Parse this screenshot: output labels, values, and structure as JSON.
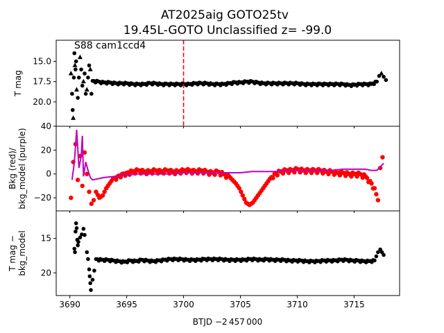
{
  "figure": {
    "title_line1": "AT2025aig  GOTO25tv",
    "title_line2": "19.45L-GOTO Unclassified z= -99.0",
    "annotation": "S88 cam1ccd4",
    "xlabel": "BTJD −2 457 000",
    "marker_color": "#ff0000",
    "model_color": "#bf00bf",
    "point_color": "#000000"
  },
  "chart_data": [
    {
      "type": "scatter",
      "panel": "top",
      "ylabel": "T mag",
      "ylim": [
        23.0,
        12.4
      ],
      "y_inverted": true,
      "yticks": [
        15.0,
        17.5,
        20.0
      ],
      "ytick_labels": [
        "15.0",
        "17.5",
        "20.0"
      ],
      "vline_x": 3700.0,
      "vline_color": "#ff0000",
      "series": [
        {
          "marker": "triangle+circle",
          "color": "#000000",
          "x": [
            3690.1,
            3690.2,
            3690.25,
            3690.3,
            3690.35,
            3690.4,
            3690.45,
            3690.5,
            3690.55,
            3690.6,
            3690.7,
            3690.8,
            3690.9,
            3691.0,
            3691.1,
            3691.2,
            3691.3,
            3691.4,
            3691.5,
            3691.6,
            3691.7,
            3691.8,
            3691.9,
            3692.0,
            3692.5,
            3693,
            3693.5,
            3694,
            3694.5,
            3695,
            3695.5,
            3696,
            3696.5,
            3697,
            3697.5,
            3698,
            3698.5,
            3699,
            3699.5,
            3700,
            3700.5,
            3701,
            3701.5,
            3702,
            3702.5,
            3703,
            3703.5,
            3704,
            3704.5,
            3705,
            3705.5,
            3706,
            3706.5,
            3707,
            3707.5,
            3708,
            3708.5,
            3709,
            3709.5,
            3710,
            3710.5,
            3711,
            3711.5,
            3712,
            3712.5,
            3713,
            3713.5,
            3714,
            3714.5,
            3715,
            3715.5,
            3716,
            3716.5,
            3717,
            3717.2,
            3717.4,
            3717.6,
            3717.8
          ],
          "y": [
            16.5,
            19.0,
            21.0,
            22.0,
            17.0,
            14.0,
            15.5,
            16.0,
            15.0,
            18.5,
            19.5,
            17.0,
            14.5,
            16.0,
            18.0,
            17.5,
            16.5,
            19.0,
            18.5,
            17.0,
            15.5,
            16.0,
            19.0,
            17.4,
            17.5,
            17.6,
            17.6,
            17.7,
            17.7,
            17.7,
            17.8,
            17.8,
            17.8,
            17.7,
            17.7,
            17.8,
            17.8,
            17.8,
            17.8,
            17.8,
            17.8,
            17.7,
            17.7,
            17.7,
            17.8,
            17.8,
            17.8,
            17.7,
            17.6,
            17.6,
            17.5,
            17.5,
            17.6,
            17.7,
            17.7,
            17.7,
            17.7,
            17.7,
            17.7,
            17.7,
            17.8,
            17.8,
            17.8,
            17.8,
            17.8,
            17.8,
            17.8,
            17.8,
            17.9,
            17.9,
            17.8,
            17.8,
            17.8,
            17.5,
            16.8,
            16.5,
            16.9,
            17.3
          ]
        }
      ]
    },
    {
      "type": "scatter",
      "panel": "middle",
      "ylabel": "Bkg (red)/\nbkg_model (purple)",
      "ylim": [
        -31,
        40
      ],
      "yticks": [
        -20,
        0,
        20,
        40
      ],
      "ytick_labels": [
        "−20",
        "0",
        "20",
        "40"
      ],
      "series": [
        {
          "name": "Bkg",
          "color": "#ff0000",
          "x": [
            3690.1,
            3690.3,
            3690.5,
            3690.7,
            3690.9,
            3691.1,
            3691.3,
            3691.5,
            3691.7,
            3691.9,
            3692.1,
            3692.3,
            3692.6,
            3692.9,
            3693.2,
            3693.5,
            3693.8,
            3694.2,
            3694.6,
            3695,
            3695.5,
            3696,
            3696.5,
            3697,
            3697.5,
            3698,
            3698.5,
            3699,
            3699.5,
            3700,
            3700.5,
            3701,
            3701.5,
            3702,
            3702.5,
            3703,
            3703.5,
            3704,
            3704.3,
            3704.6,
            3704.9,
            3705.2,
            3705.5,
            3705.8,
            3706.1,
            3706.4,
            3706.7,
            3707,
            3707.3,
            3707.6,
            3708,
            3708.5,
            3709,
            3709.5,
            3710,
            3710.5,
            3711,
            3711.5,
            3712,
            3712.5,
            3713,
            3713.5,
            3714,
            3714.5,
            3715,
            3715.5,
            3716,
            3716.4,
            3716.8,
            3717.1,
            3717.3,
            3717.5
          ],
          "y": [
            -20,
            10,
            25,
            -5,
            15,
            -10,
            18,
            0,
            -15,
            -25,
            -22,
            -15,
            -20,
            -18,
            -12,
            -8,
            -4,
            -2,
            0,
            1,
            2,
            3,
            2,
            2,
            3,
            2,
            3,
            2,
            2,
            3,
            3,
            2,
            3,
            2,
            1,
            2,
            0,
            -2,
            -5,
            -8,
            -12,
            -18,
            -24,
            -26,
            -24,
            -20,
            -16,
            -12,
            -8,
            -4,
            0,
            2,
            3,
            3,
            4,
            3,
            3,
            3,
            3,
            2,
            2,
            1,
            1,
            0,
            0,
            0,
            -2,
            -6,
            -12,
            -22,
            5,
            14
          ]
        },
        {
          "name": "bkg_model",
          "color": "#bf00bf",
          "x": [
            3690.2,
            3690.4,
            3690.6,
            3690.8,
            3691.0,
            3691.1,
            3691.2,
            3691.4,
            3691.6,
            3691.8,
            3692.0,
            3692.5,
            3693,
            3694,
            3695,
            3696,
            3697,
            3698,
            3699,
            3700,
            3701,
            3702,
            3703,
            3704,
            3705,
            3706,
            3707,
            3708,
            3709,
            3710,
            3711,
            3712,
            3713,
            3714,
            3715,
            3716,
            3716.5,
            3717,
            3717.3,
            3717.6
          ],
          "y": [
            -5,
            10,
            37,
            5,
            15,
            32,
            -2,
            10,
            3,
            -3,
            -5,
            -4,
            -3,
            -2,
            -1,
            0,
            0,
            0,
            0,
            1,
            1,
            1,
            1,
            1,
            1,
            2,
            2,
            2,
            3,
            3,
            3,
            3,
            3,
            4,
            4,
            4,
            3,
            3,
            6,
            9
          ]
        }
      ]
    },
    {
      "type": "scatter",
      "panel": "bottom",
      "ylabel": "T mag −\nbkg_model",
      "ylim": [
        23.3,
        11.0
      ],
      "y_inverted": true,
      "yticks": [
        15,
        20
      ],
      "ytick_labels": [
        "15",
        "20"
      ],
      "xlim": [
        3688.8,
        3719.0
      ],
      "xticks": [
        3690,
        3695,
        3700,
        3705,
        3710,
        3715
      ],
      "xtick_labels": [
        "3690",
        "3695",
        "3700",
        "3705",
        "3710",
        "3715"
      ],
      "series": [
        {
          "color": "#000000",
          "x": [
            3690.4,
            3690.45,
            3690.5,
            3690.55,
            3690.6,
            3690.65,
            3690.7,
            3690.75,
            3691.2,
            3691.3,
            3691.5,
            3691.6,
            3691.7,
            3691.75,
            3691.8,
            3691.85,
            3692.3,
            3692.8,
            3693.3,
            3693.8,
            3694.3,
            3694.8,
            3695.3,
            3695.8,
            3696.3,
            3696.8,
            3697.3,
            3697.8,
            3698.3,
            3698.8,
            3699.3,
            3699.8,
            3700.3,
            3700.8,
            3701.3,
            3701.8,
            3702.3,
            3702.8,
            3703.3,
            3703.8,
            3704.3,
            3704.8,
            3705.3,
            3705.8,
            3706.3,
            3706.8,
            3707.3,
            3707.8,
            3708.3,
            3708.8,
            3709.3,
            3709.8,
            3710.3,
            3710.8,
            3711.3,
            3711.8,
            3712.3,
            3712.8,
            3713.3,
            3713.8,
            3714.3,
            3714.8,
            3715.3,
            3715.8,
            3716.3,
            3716.8,
            3717.1,
            3717.3,
            3717.6
          ],
          "y": [
            16.5,
            17.0,
            14.0,
            12.8,
            13.5,
            15.2,
            16.0,
            15.5,
            13.6,
            14.5,
            17.0,
            18.0,
            19.5,
            20.5,
            21.5,
            22.5,
            18.0,
            18.1,
            18.1,
            18.2,
            18.3,
            18.4,
            18.2,
            18.3,
            18.1,
            18.2,
            18.3,
            18.2,
            18.1,
            18.0,
            18.0,
            18.0,
            18.1,
            18.1,
            18.1,
            18.0,
            18.0,
            18.0,
            18.0,
            18.1,
            18.1,
            18.1,
            18.1,
            18.0,
            18.0,
            18.1,
            18.0,
            18.1,
            18.1,
            18.1,
            18.2,
            18.2,
            18.2,
            18.3,
            18.3,
            18.3,
            18.2,
            18.2,
            18.2,
            18.1,
            18.1,
            18.2,
            18.2,
            18.3,
            18.3,
            18.2,
            17.0,
            16.6,
            17.4
          ]
        }
      ]
    }
  ]
}
